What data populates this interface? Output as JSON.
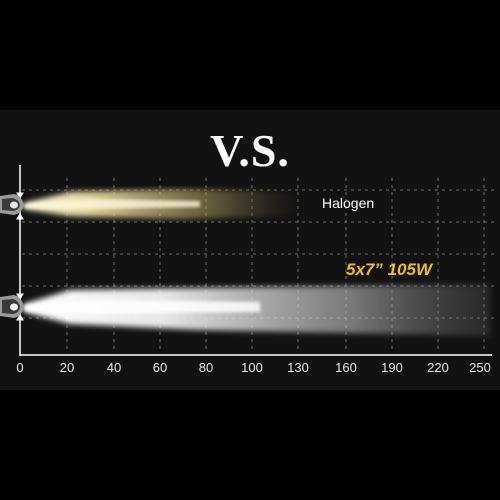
{
  "title": "V.S.",
  "halogen_label": "Halogen",
  "led_label": "5x7” 105W",
  "x_ticks": [
    "0",
    "20",
    "40",
    "60",
    "80",
    "100",
    "130",
    "160",
    "190",
    "220",
    "250"
  ],
  "colors": {
    "background": "#000000",
    "band": "#121212",
    "halogen_beam": "#f3e3a0",
    "led_beam": "#ffffff",
    "led_label": "#f2c200",
    "grid": "#6e6e6e"
  },
  "icons": [
    "car-headlight-icon",
    "car-headlight-icon"
  ]
}
